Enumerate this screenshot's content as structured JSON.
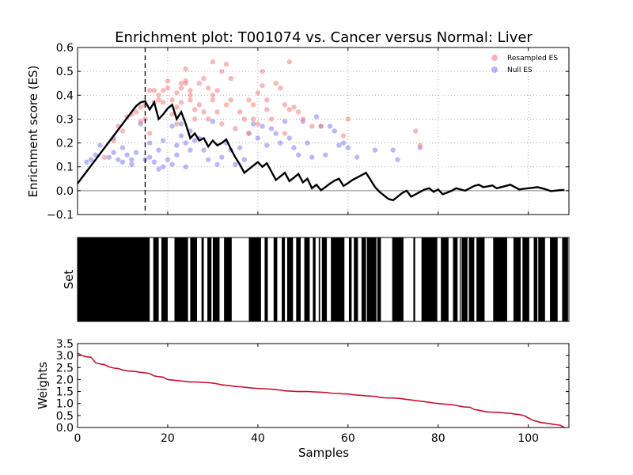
{
  "chart_data": {
    "type": "scatter",
    "title": "Enrichment plot: T001074 vs. Cancer versus Normal: Liver",
    "colors": {
      "resampled": "#f08080",
      "null": "#8080f0",
      "es_line": "#000000",
      "weights_line": "#c8102e",
      "grid": "#999999"
    },
    "es_panel": {
      "ylabel": "Enrichment score (ES)",
      "ylim": [
        -0.1,
        0.6
      ],
      "yticks": [
        -0.1,
        0.0,
        0.1,
        0.2,
        0.3,
        0.4,
        0.5,
        0.6
      ],
      "ytick_labels": [
        "−0.1",
        "0.0",
        "0.1",
        "0.2",
        "0.3",
        "0.4",
        "0.5",
        "0.6"
      ],
      "grid": true,
      "max_es_position": 15,
      "legend": {
        "placement": "top-right",
        "entries": [
          "Resampled ES",
          "Null ES"
        ]
      },
      "es_series": {
        "name": "ES",
        "x": [
          0,
          1,
          2,
          3,
          4,
          5,
          6,
          7,
          8,
          9,
          10,
          11,
          12,
          13,
          14,
          15,
          16,
          17,
          18,
          19,
          20,
          21,
          22,
          23,
          24,
          25,
          26,
          27,
          28,
          29,
          30,
          31,
          32,
          33,
          34,
          35,
          36,
          37,
          38,
          39,
          40,
          41,
          42,
          43,
          44,
          45,
          46,
          47,
          48,
          49,
          50,
          51,
          52,
          53,
          54,
          55,
          56,
          57,
          58,
          59,
          60,
          61,
          62,
          63,
          64,
          65,
          66,
          67,
          68,
          69,
          70,
          71,
          72,
          73,
          74,
          75,
          76,
          77,
          78,
          79,
          80,
          81,
          82,
          83,
          84,
          85,
          86,
          87,
          88,
          89,
          90,
          91,
          92,
          93,
          94,
          95,
          96,
          97,
          98,
          99,
          100,
          101,
          102,
          103,
          104,
          105,
          106,
          107,
          108
        ],
        "y": [
          0.03,
          0.055,
          0.08,
          0.105,
          0.13,
          0.155,
          0.18,
          0.205,
          0.23,
          0.255,
          0.28,
          0.305,
          0.33,
          0.355,
          0.37,
          0.375,
          0.34,
          0.37,
          0.3,
          0.32,
          0.345,
          0.36,
          0.3,
          0.33,
          0.28,
          0.22,
          0.24,
          0.21,
          0.22,
          0.185,
          0.21,
          0.19,
          0.2,
          0.215,
          0.175,
          0.14,
          0.11,
          0.075,
          0.09,
          0.105,
          0.12,
          0.1,
          0.115,
          0.08,
          0.045,
          0.06,
          0.075,
          0.04,
          0.055,
          0.07,
          0.035,
          0.05,
          0.01,
          0.025,
          0.002,
          0.015,
          0.03,
          0.042,
          0.05,
          0.02,
          0.032,
          0.045,
          0.055,
          0.065,
          0.075,
          0.045,
          0.015,
          -0.005,
          -0.02,
          -0.035,
          -0.04,
          -0.025,
          -0.01,
          0.0,
          -0.025,
          -0.015,
          -0.005,
          0.005,
          0.01,
          -0.005,
          0.005,
          -0.015,
          -0.008,
          0.0,
          0.01,
          0.005,
          0.0,
          0.01,
          0.02,
          0.025,
          0.015,
          0.018,
          0.022,
          0.01,
          0.015,
          0.02,
          0.025,
          0.015,
          0.005,
          0.008,
          0.01,
          0.012,
          0.015,
          0.01,
          0.005,
          -0.002,
          0.0,
          0.002,
          0.003
        ]
      },
      "resampled_es": {
        "name": "Resampled ES",
        "x": [
          6,
          8,
          9,
          10,
          11,
          12,
          13,
          14,
          14,
          15,
          15,
          16,
          16,
          17,
          17,
          18,
          18,
          19,
          19,
          20,
          20,
          21,
          21,
          22,
          22,
          22,
          23,
          23,
          23,
          24,
          24,
          24,
          25,
          25,
          25,
          26,
          26,
          27,
          27,
          28,
          28,
          29,
          29,
          30,
          30,
          30,
          31,
          31,
          32,
          32,
          33,
          33,
          34,
          34,
          35,
          36,
          37,
          38,
          38,
          39,
          39,
          40,
          40,
          41,
          41,
          42,
          42,
          43,
          44,
          45,
          46,
          46,
          47,
          47,
          48,
          49,
          50,
          52,
          54,
          59,
          60,
          75,
          76
        ],
        "y": [
          0.14,
          0.21,
          0.27,
          0.25,
          0.31,
          0.32,
          0.33,
          0.35,
          0.29,
          0.36,
          0.3,
          0.24,
          0.42,
          0.37,
          0.42,
          0.38,
          0.4,
          0.42,
          0.37,
          0.46,
          0.43,
          0.32,
          0.38,
          0.41,
          0.35,
          0.28,
          0.45,
          0.43,
          0.37,
          0.51,
          0.45,
          0.46,
          0.38,
          0.42,
          0.4,
          0.34,
          0.3,
          0.45,
          0.36,
          0.33,
          0.47,
          0.3,
          0.43,
          0.54,
          0.4,
          0.38,
          0.42,
          0.33,
          0.5,
          0.28,
          0.53,
          0.36,
          0.38,
          0.47,
          0.26,
          0.33,
          0.3,
          0.38,
          0.24,
          0.36,
          0.3,
          0.41,
          0.28,
          0.5,
          0.44,
          0.34,
          0.38,
          0.3,
          0.45,
          0.43,
          0.36,
          0.24,
          0.54,
          0.34,
          0.35,
          0.33,
          0.3,
          0.27,
          0.27,
          0.23,
          0.3,
          0.25,
          0.19
        ]
      },
      "null_es": {
        "name": "Null ES",
        "x": [
          2,
          3,
          4,
          5,
          7,
          8,
          8,
          9,
          10,
          10,
          11,
          12,
          12,
          13,
          14,
          15,
          16,
          16,
          17,
          18,
          18,
          19,
          19,
          20,
          21,
          21,
          22,
          22,
          23,
          23,
          24,
          24,
          25,
          25,
          26,
          27,
          28,
          29,
          30,
          31,
          32,
          33,
          34,
          35,
          36,
          37,
          38,
          39,
          40,
          41,
          42,
          43,
          44,
          45,
          46,
          47,
          48,
          49,
          50,
          51,
          52,
          53,
          54,
          55,
          56,
          57,
          58,
          59,
          60,
          62,
          66,
          70,
          71,
          76
        ],
        "y": [
          0.12,
          0.13,
          0.15,
          0.19,
          0.14,
          0.16,
          0.22,
          0.13,
          0.12,
          0.18,
          0.15,
          0.11,
          0.13,
          0.16,
          0.28,
          0.13,
          0.2,
          0.14,
          0.12,
          0.17,
          0.09,
          0.21,
          0.1,
          0.13,
          0.11,
          0.27,
          0.15,
          0.19,
          0.28,
          0.23,
          0.1,
          0.2,
          0.17,
          0.25,
          0.21,
          0.22,
          0.17,
          0.13,
          0.29,
          0.11,
          0.14,
          0.2,
          0.17,
          0.11,
          0.18,
          0.13,
          0.24,
          0.28,
          0.22,
          0.27,
          0.19,
          0.26,
          0.24,
          0.2,
          0.29,
          0.22,
          0.18,
          0.15,
          0.29,
          0.2,
          0.14,
          0.31,
          0.27,
          0.15,
          0.27,
          0.25,
          0.19,
          0.2,
          0.18,
          0.14,
          0.17,
          0.17,
          0.13,
          0.18
        ]
      }
    },
    "set_panel": {
      "ylabel": "Set",
      "xlim": [
        0,
        109
      ],
      "members": [
        [
          0,
          16
        ],
        [
          16.8,
          18
        ],
        [
          18.6,
          20
        ],
        [
          21.5,
          24.5
        ],
        [
          25,
          26.5
        ],
        [
          27.5,
          28
        ],
        [
          28.8,
          29.7
        ],
        [
          30,
          31.5
        ],
        [
          32.5,
          34.2
        ],
        [
          38,
          40.7
        ],
        [
          41.5,
          42.2
        ],
        [
          43.5,
          44.3
        ],
        [
          45.3,
          46
        ],
        [
          46.5,
          47.8
        ],
        [
          48.5,
          49.5
        ],
        [
          50.3,
          51.5
        ],
        [
          52.2,
          52.8
        ],
        [
          53.5,
          53.8
        ],
        [
          54.2,
          55.3
        ],
        [
          56.2,
          59.2
        ],
        [
          60.2,
          60.8
        ],
        [
          61.3,
          62.2
        ],
        [
          63,
          64
        ],
        [
          64.2,
          66.3
        ],
        [
          66.5,
          67.3
        ],
        [
          69.8,
          72.3
        ],
        [
          74.5,
          74.9
        ],
        [
          76.3,
          79.8
        ],
        [
          80.6,
          82.3
        ],
        [
          83.3,
          84.3
        ],
        [
          84.8,
          85
        ],
        [
          85.2,
          86.5
        ],
        [
          86.8,
          88
        ],
        [
          88.5,
          90.3
        ],
        [
          92.2,
          95.3
        ],
        [
          96.7,
          98.3
        ],
        [
          98.7,
          100.2
        ],
        [
          101.2,
          102
        ],
        [
          102.2,
          103.7
        ],
        [
          104.8,
          106.5
        ],
        [
          107.5,
          108.8
        ]
      ]
    },
    "weights_panel": {
      "ylabel": "Weights",
      "xlabel": "Samples",
      "xlim": [
        0,
        109
      ],
      "ylim": [
        0,
        3.5
      ],
      "xticks": [
        0,
        20,
        40,
        60,
        80,
        100
      ],
      "xtick_labels": [
        "0",
        "20",
        "40",
        "60",
        "80",
        "100"
      ],
      "yticks": [
        0.0,
        0.5,
        1.0,
        1.5,
        2.0,
        2.5,
        3.0,
        3.5
      ],
      "ytick_labels": [
        "0.0",
        "0.5",
        "1.0",
        "1.5",
        "2.0",
        "2.5",
        "3.0",
        "3.5"
      ],
      "weights": {
        "x": [
          0,
          1,
          2,
          3,
          4,
          5,
          6,
          7,
          8,
          9,
          10,
          11,
          12,
          13,
          14,
          15,
          16,
          17,
          18,
          19,
          20,
          21,
          22,
          23,
          24,
          25,
          26,
          27,
          28,
          29,
          30,
          31,
          32,
          33,
          34,
          35,
          36,
          37,
          38,
          39,
          40,
          41,
          42,
          43,
          44,
          45,
          46,
          47,
          48,
          49,
          50,
          51,
          52,
          53,
          54,
          55,
          56,
          57,
          58,
          59,
          60,
          61,
          62,
          63,
          64,
          65,
          66,
          67,
          68,
          69,
          70,
          71,
          72,
          73,
          74,
          75,
          76,
          77,
          78,
          79,
          80,
          81,
          82,
          83,
          84,
          85,
          86,
          87,
          88,
          89,
          90,
          91,
          92,
          93,
          94,
          95,
          96,
          97,
          98,
          99,
          100,
          101,
          102,
          103,
          104,
          105,
          106,
          107,
          108
        ],
        "y": [
          3.1,
          3.0,
          2.95,
          2.93,
          2.7,
          2.65,
          2.62,
          2.53,
          2.48,
          2.46,
          2.4,
          2.36,
          2.35,
          2.33,
          2.3,
          2.28,
          2.25,
          2.15,
          2.12,
          2.1,
          2.0,
          1.98,
          1.96,
          1.94,
          1.92,
          1.9,
          1.9,
          1.89,
          1.88,
          1.87,
          1.85,
          1.82,
          1.78,
          1.76,
          1.74,
          1.71,
          1.7,
          1.68,
          1.66,
          1.64,
          1.63,
          1.62,
          1.61,
          1.6,
          1.58,
          1.56,
          1.53,
          1.52,
          1.51,
          1.5,
          1.5,
          1.5,
          1.49,
          1.48,
          1.47,
          1.46,
          1.44,
          1.42,
          1.42,
          1.4,
          1.4,
          1.37,
          1.35,
          1.34,
          1.32,
          1.31,
          1.3,
          1.26,
          1.24,
          1.23,
          1.23,
          1.22,
          1.2,
          1.17,
          1.15,
          1.12,
          1.1,
          1.08,
          1.05,
          1.02,
          1.0,
          0.98,
          0.97,
          0.95,
          0.92,
          0.88,
          0.85,
          0.85,
          0.75,
          0.72,
          0.68,
          0.65,
          0.64,
          0.63,
          0.62,
          0.6,
          0.59,
          0.56,
          0.54,
          0.5,
          0.4,
          0.3,
          0.25,
          0.2,
          0.18,
          0.15,
          0.12,
          0.1,
          0.0
        ]
      }
    }
  }
}
